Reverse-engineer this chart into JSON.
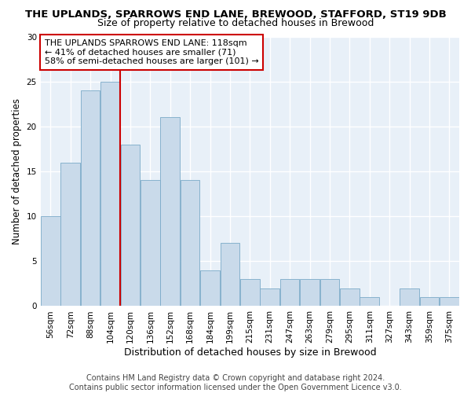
{
  "title": "THE UPLANDS, SPARROWS END LANE, BREWOOD, STAFFORD, ST19 9DB",
  "subtitle": "Size of property relative to detached houses in Brewood",
  "xlabel": "Distribution of detached houses by size in Brewood",
  "ylabel": "Number of detached properties",
  "categories": [
    "56sqm",
    "72sqm",
    "88sqm",
    "104sqm",
    "120sqm",
    "136sqm",
    "152sqm",
    "168sqm",
    "184sqm",
    "199sqm",
    "215sqm",
    "231sqm",
    "247sqm",
    "263sqm",
    "279sqm",
    "295sqm",
    "311sqm",
    "327sqm",
    "343sqm",
    "359sqm",
    "375sqm"
  ],
  "values": [
    10,
    16,
    24,
    25,
    18,
    14,
    21,
    14,
    4,
    7,
    3,
    2,
    3,
    3,
    3,
    2,
    1,
    0,
    2,
    1,
    1
  ],
  "bar_color": "#c9daea",
  "bar_edge_color": "#7aaac8",
  "vline_x_index": 3.5,
  "vline_color": "#cc0000",
  "ylim": [
    0,
    30
  ],
  "yticks": [
    0,
    5,
    10,
    15,
    20,
    25,
    30
  ],
  "annotation_text": "THE UPLANDS SPARROWS END LANE: 118sqm\n← 41% of detached houses are smaller (71)\n58% of semi-detached houses are larger (101) →",
  "annotation_box_facecolor": "#ffffff",
  "annotation_box_edgecolor": "#cc0000",
  "footer_line1": "Contains HM Land Registry data © Crown copyright and database right 2024.",
  "footer_line2": "Contains public sector information licensed under the Open Government Licence v3.0.",
  "title_fontsize": 9.5,
  "subtitle_fontsize": 9,
  "xlabel_fontsize": 9,
  "ylabel_fontsize": 8.5,
  "tick_fontsize": 7.5,
  "annotation_fontsize": 8,
  "footer_fontsize": 7,
  "background_color": "#ffffff",
  "plot_bg_color": "#e8f0f8",
  "grid_color": "#ffffff"
}
